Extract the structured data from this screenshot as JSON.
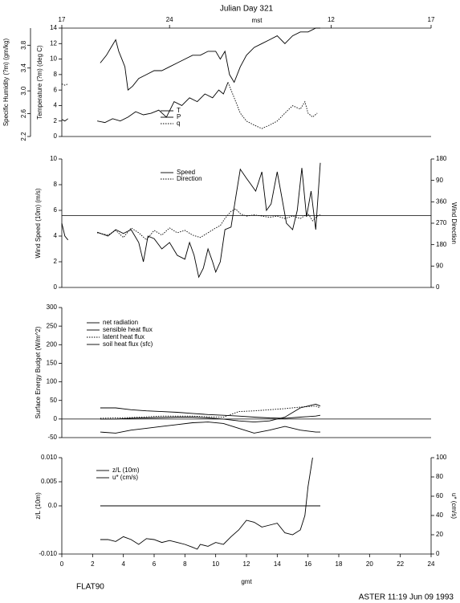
{
  "chart_data": [
    {
      "type": "line",
      "title": "Julian Day 321",
      "x2label": "mst",
      "xlim": [
        0,
        24
      ],
      "x2ticks": [
        {
          "value": 0,
          "label": "17"
        },
        {
          "value": 7,
          "label": "24"
        },
        {
          "value": 17.5,
          "label": "12"
        },
        {
          "value": 24,
          "label": "17"
        }
      ],
      "ylabel": "Temperature (?m) (deg C)",
      "ylim": [
        0,
        14
      ],
      "yticks": [
        0,
        2,
        4,
        6,
        8,
        10,
        12,
        14
      ],
      "y2label": "Specific Humidity (?m) (gm/kg)",
      "y2side": "far-left",
      "y2lim": [
        2.2,
        4.1
      ],
      "y2ticks": [
        2.2,
        2.6,
        {
          "value": 3,
          "label": "3.0"
        },
        3.4,
        3.8
      ],
      "series": [
        {
          "name": "T",
          "color": "#000000",
          "dash": "none",
          "x": [
            2.5,
            2.9,
            3.2,
            3.5,
            3.7,
            3.9,
            4.1,
            4.3,
            4.6,
            5,
            5.5,
            6,
            6.5,
            7,
            7.5,
            8,
            8.5,
            9,
            9.5,
            10,
            10.3,
            10.6,
            10.9,
            11.2,
            11.6,
            12,
            12.5,
            13,
            13.5,
            14,
            14.5,
            15,
            15.5,
            16,
            16.5,
            16.8
          ],
          "values": [
            9.5,
            10.5,
            11.5,
            12.5,
            11,
            10,
            9,
            6,
            6.5,
            7.5,
            8,
            8.5,
            8.5,
            9,
            9.5,
            10,
            10.5,
            10.5,
            11,
            11,
            10,
            11,
            8,
            7,
            9,
            10.5,
            11.5,
            12,
            12.5,
            13,
            12,
            13,
            13.5,
            13.5,
            14,
            14
          ]
        },
        {
          "name": "P",
          "color": "#000000",
          "dash": "none",
          "x": [
            0,
            0.2,
            0.4,
            0.5,
            2.3,
            2.8,
            3.3,
            3.8,
            4.3,
            4.8,
            5.3,
            5.8,
            6.3,
            6.8,
            7.3,
            7.8,
            8.3,
            8.8,
            9.3,
            9.8,
            10.2,
            10.5,
            10.8
          ],
          "values": [
            2.2,
            2,
            2.3,
            null,
            2,
            1.8,
            2.3,
            2,
            2.5,
            3.2,
            2.8,
            3,
            3.4,
            2.5,
            4.5,
            4,
            5,
            4.5,
            5.5,
            5,
            6,
            5.5,
            7
          ]
        },
        {
          "name": "q",
          "color": "#000000",
          "dash": "1.5,1.5",
          "axis": "y2",
          "x": [
            0,
            0.2,
            0.4,
            0.5,
            10.8,
            11.2,
            11.6,
            12,
            12.5,
            13,
            13.5,
            14,
            14.5,
            15,
            15.5,
            15.8,
            16,
            16.3,
            16.6
          ],
          "values": [
            3.12,
            3.1,
            3.12,
            null,
            3.15,
            2.88,
            2.61,
            2.47,
            2.4,
            2.34,
            2.4,
            2.47,
            2.61,
            2.74,
            2.68,
            2.81,
            2.61,
            2.54,
            2.61
          ]
        }
      ]
    },
    {
      "type": "line",
      "xlim": [
        0,
        24
      ],
      "ylabel": "Wind Speed (10m) (m/s)",
      "ylim": [
        0,
        10
      ],
      "yticks": [
        0,
        2,
        4,
        6,
        8,
        10
      ],
      "y2label": "Wind Direction",
      "y2side": "right",
      "y2lim": [
        0,
        540
      ],
      "y2ticks": [
        0,
        90,
        180,
        270,
        360,
        {
          "value": 450,
          "label": "90"
        },
        {
          "value": 540,
          "label": "180"
        }
      ],
      "reference_line": 5.6,
      "series": [
        {
          "name": "Speed",
          "color": "#000000",
          "dash": "none",
          "x": [
            0,
            0.2,
            0.4,
            0.5,
            2.3,
            3,
            3.5,
            4,
            4.5,
            5,
            5.3,
            5.6,
            6,
            6.5,
            7,
            7.5,
            8,
            8.3,
            8.6,
            8.9,
            9.2,
            9.5,
            9.8,
            10,
            10.3,
            10.6,
            11,
            11.3,
            11.6,
            12,
            12.3,
            12.6,
            13,
            13.3,
            13.6,
            14,
            14.3,
            14.6,
            15,
            15.3,
            15.6,
            15.9,
            16.2,
            16.5,
            16.8
          ],
          "values": [
            5,
            4,
            3.7,
            null,
            4.3,
            4,
            4.5,
            4.2,
            4.5,
            3.5,
            2,
            4,
            3.8,
            3,
            3.5,
            2.5,
            2.2,
            3.5,
            2.5,
            0.8,
            1.5,
            3,
            2,
            1.2,
            2,
            4.5,
            4.7,
            7,
            9.2,
            8.5,
            8,
            7.5,
            9,
            6,
            6.5,
            9,
            7,
            5,
            4.5,
            6,
            9.3,
            5.5,
            7.5,
            4.5,
            9.7
          ]
        },
        {
          "name": "Direction",
          "color": "#000000",
          "dash": "1.5,1.5",
          "axis": "y2",
          "x": [
            2.3,
            3,
            3.5,
            4,
            4.5,
            5,
            5.5,
            6,
            6.5,
            7,
            7.5,
            8,
            8.5,
            9,
            9.5,
            10,
            10.3,
            10.6,
            11,
            11.3,
            11.6,
            12,
            12.5,
            13,
            13.5,
            14,
            14.5,
            15,
            15.5,
            16,
            16.3,
            16.6,
            16.8
          ],
          "values": [
            230,
            220,
            240,
            210,
            250,
            230,
            200,
            240,
            220,
            250,
            230,
            240,
            220,
            210,
            230,
            250,
            260,
            290,
            320,
            330,
            310,
            300,
            305,
            300,
            295,
            300,
            290,
            300,
            290,
            310,
            280,
            300,
            305
          ]
        }
      ]
    },
    {
      "type": "line",
      "xlim": [
        0,
        24
      ],
      "ylabel": "Surface Energy Budget (W/m^2)",
      "ylim": [
        -50,
        300
      ],
      "yticks": [
        -50,
        0,
        50,
        100,
        150,
        200,
        250,
        300
      ],
      "zero_line": true,
      "series": [
        {
          "name": "net radiation",
          "color": "#000000",
          "dash": "none",
          "x": [
            2.5,
            3.5,
            4.5,
            5.5,
            6.5,
            7.5,
            8.5,
            9.5,
            10.5,
            11.5,
            12.5,
            13.5,
            14.5,
            15.5,
            16.5,
            16.8
          ],
          "values": [
            -35,
            -38,
            -30,
            -25,
            -20,
            -15,
            -10,
            -8,
            -12,
            -25,
            -38,
            -30,
            -20,
            -30,
            -35,
            -35
          ]
        },
        {
          "name": "sensible heat flux",
          "color": "#000000",
          "dash": "none",
          "x": [
            2.5,
            3.5,
            4.5,
            5.5,
            6.5,
            7.5,
            8.5,
            9.5,
            10.5,
            11.5,
            12.5,
            13.5,
            14.5,
            15.5,
            16.5,
            16.8
          ],
          "values": [
            30,
            30,
            25,
            22,
            20,
            18,
            15,
            12,
            10,
            8,
            5,
            3,
            2,
            5,
            8,
            10
          ]
        },
        {
          "name": "latent heat flux",
          "color": "#000000",
          "dash": "1.5,1.5",
          "x": [
            2.5,
            3.5,
            4.5,
            5.5,
            6.5,
            7.5,
            8.5,
            9.5,
            10.5,
            11.5,
            12.5,
            13.5,
            14.5,
            15.5,
            16.5,
            16.8
          ],
          "values": [
            2,
            3,
            4,
            6,
            8,
            8,
            8,
            6,
            5,
            20,
            22,
            25,
            28,
            32,
            35,
            30
          ]
        },
        {
          "name": "soil heat flux (sfc)",
          "color": "#000000",
          "dash": "none",
          "x": [
            2.5,
            3.5,
            4.5,
            5.5,
            6.5,
            7.5,
            8.5,
            9.5,
            10.5,
            11.5,
            12.5,
            13.5,
            14.5,
            15.5,
            16.5,
            16.8
          ],
          "values": [
            0,
            0,
            2,
            3,
            4,
            5,
            5,
            3,
            0,
            -5,
            -8,
            -5,
            5,
            30,
            40,
            35
          ]
        }
      ]
    },
    {
      "type": "line",
      "xlim": [
        0,
        24
      ],
      "xticks": [
        0,
        2,
        4,
        6,
        8,
        10,
        12,
        14,
        16,
        18,
        20,
        22,
        24
      ],
      "xlabel": "gmt",
      "ylabel": "z/L (10m)",
      "ylim": [
        -0.01,
        0.01
      ],
      "yticks": [
        {
          "value": -0.01,
          "label": "-0.010"
        },
        {
          "value": 0,
          "label": "0.0"
        },
        {
          "value": 0.005,
          "label": "0.005"
        },
        {
          "value": 0.01,
          "label": "0.010"
        }
      ],
      "y2label": "u* (cm/s)",
      "y2side": "right",
      "y2lim": [
        0,
        100
      ],
      "y2ticks": [
        0,
        20,
        40,
        60,
        80,
        100
      ],
      "annotations": [
        "FLAT90",
        "ASTER 11:19 Jun 09 1993"
      ],
      "series": [
        {
          "name": "z/L (10m)",
          "color": "#000000",
          "dash": "none",
          "x": [
            2.5,
            16.8
          ],
          "values": [
            0,
            0
          ]
        },
        {
          "name": "u* (cm/s)",
          "color": "#000000",
          "dash": "none",
          "axis": "y2",
          "x": [
            2.5,
            3,
            3.5,
            4,
            4.5,
            5,
            5.5,
            6,
            6.5,
            7,
            7.5,
            8,
            8.5,
            8.8,
            9,
            9.5,
            10,
            10.5,
            11,
            11.5,
            12,
            12.5,
            13,
            13.5,
            14,
            14.5,
            15,
            15.5,
            15.8,
            16,
            16.3
          ],
          "values": [
            15,
            15,
            13,
            18,
            15,
            10,
            16,
            15,
            12,
            14,
            12,
            10,
            7,
            5,
            10,
            8,
            12,
            10,
            18,
            25,
            35,
            33,
            28,
            30,
            32,
            22,
            20,
            25,
            40,
            70,
            100
          ]
        }
      ]
    }
  ]
}
